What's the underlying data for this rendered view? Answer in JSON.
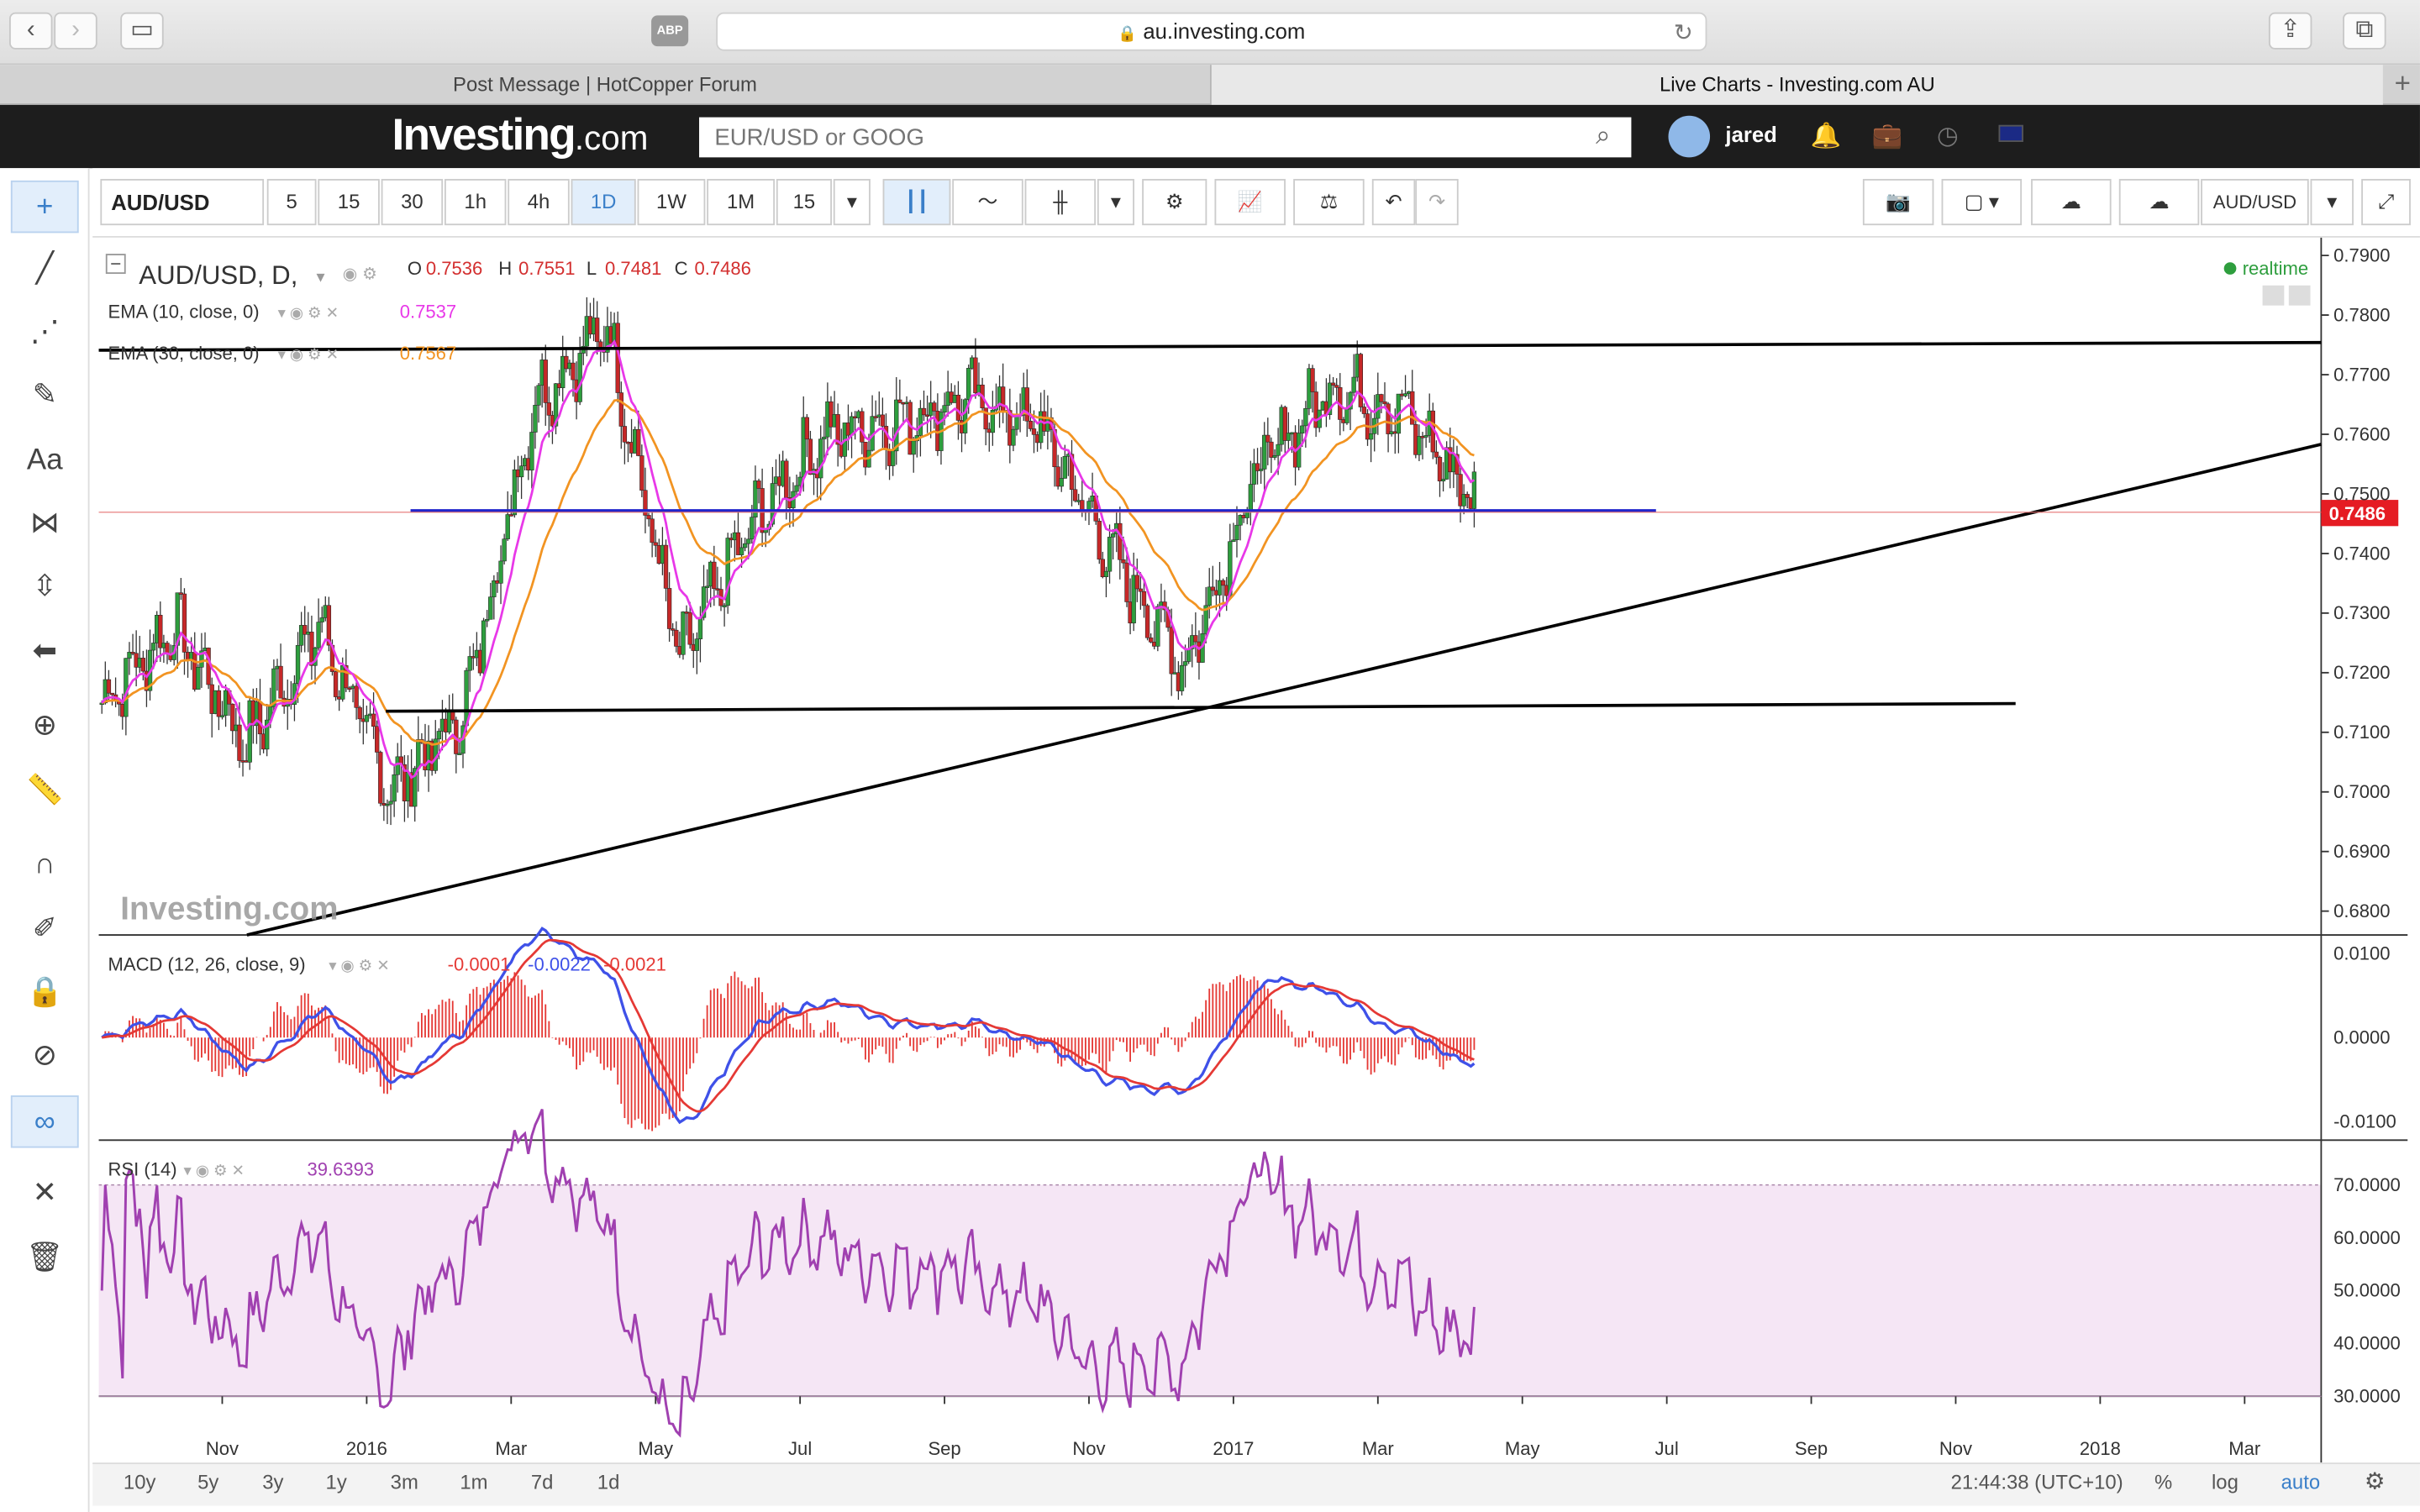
{
  "browser": {
    "url": "au.investing.com",
    "abp_label": "ABP",
    "tabs": [
      {
        "label": "Post Message | HotCopper Forum",
        "active": false
      },
      {
        "label": "Live Charts - Investing.com AU",
        "active": true
      }
    ]
  },
  "header": {
    "logo_main": "Investing",
    "logo_suffix": ".com",
    "search_placeholder": "EUR/USD or GOOG",
    "username": "jared"
  },
  "toolbar": {
    "symbol": "AUD/USD",
    "intervals": [
      "5",
      "15",
      "30",
      "1h",
      "4h",
      "1D",
      "1W",
      "1M",
      "15"
    ],
    "selected_interval": "1D",
    "right_symbol": "AUD/USD"
  },
  "legend": {
    "title": "AUD/USD, D,",
    "open_label": "O",
    "open": "0.7536",
    "high_label": "H",
    "high": "0.7551",
    "low_label": "L",
    "low": "0.7481",
    "close_label": "C",
    "close": "0.7486",
    "ema10_label": "EMA (10, close, 0)",
    "ema10_value": "0.7537",
    "ema30_label": "EMA (30, close, 0)",
    "ema30_value": "0.7567",
    "realtime": "realtime",
    "watermark": "Investing.com"
  },
  "macd_legend": {
    "label": "MACD (12, 26, close, 9)",
    "v1": "-0.0001",
    "v2": "-0.0022",
    "v3": "-0.0021"
  },
  "rsi_legend": {
    "label": "RSI (14)",
    "value": "39.6393"
  },
  "colors": {
    "candle_up": "#2e9e3e",
    "candle_down": "#c62828",
    "ema10": "#e838e8",
    "ema30": "#f29422",
    "price_tag": "#e51c23",
    "macd_line": "#3f51e8",
    "signal_line": "#e53935",
    "rsi_line": "#a040b0",
    "rsi_band": "#f5e6f5",
    "support": "#2026cc"
  },
  "timebar": {
    "ranges": [
      "10y",
      "5y",
      "3y",
      "1y",
      "3m",
      "1m",
      "7d",
      "1d"
    ],
    "clock": "21:44:38 (UTC+10)",
    "pct": "%",
    "log": "log",
    "auto": "auto"
  },
  "chart_data": [
    {
      "type": "candlestick",
      "symbol": "AUD/USD",
      "interval": "D",
      "x_ticks": [
        "Nov",
        "2016",
        "Mar",
        "May",
        "Jul",
        "Sep",
        "Nov",
        "2017",
        "Mar",
        "May",
        "Jul",
        "Sep",
        "Nov",
        "2018",
        "Mar"
      ],
      "y_ticks": [
        "0.7900",
        "0.7800",
        "0.7700",
        "0.7600",
        "0.7500",
        "0.7400",
        "0.7300",
        "0.7200",
        "0.7100",
        "0.7000",
        "0.6900",
        "0.6800"
      ],
      "ylim": [
        0.676,
        0.793
      ],
      "last_price": "0.7486",
      "approx_close_by_month": [
        {
          "x": "2015-09",
          "y": 0.715
        },
        {
          "x": "2015-10",
          "y": 0.728
        },
        {
          "x": "2015-11",
          "y": 0.708
        },
        {
          "x": "2015-12",
          "y": 0.728
        },
        {
          "x": "2016-01",
          "y": 0.7
        },
        {
          "x": "2016-02",
          "y": 0.713
        },
        {
          "x": "2016-03",
          "y": 0.766
        },
        {
          "x": "2016-04",
          "y": 0.778
        },
        {
          "x": "2016-05",
          "y": 0.722
        },
        {
          "x": "2016-06",
          "y": 0.745
        },
        {
          "x": "2016-07",
          "y": 0.76
        },
        {
          "x": "2016-08",
          "y": 0.762
        },
        {
          "x": "2016-09",
          "y": 0.766
        },
        {
          "x": "2016-10",
          "y": 0.761
        },
        {
          "x": "2016-11",
          "y": 0.739
        },
        {
          "x": "2016-12",
          "y": 0.721
        },
        {
          "x": "2017-01",
          "y": 0.754
        },
        {
          "x": "2017-02",
          "y": 0.768
        },
        {
          "x": "2017-03",
          "y": 0.764
        },
        {
          "x": "2017-04",
          "y": 0.749
        }
      ]
    },
    {
      "type": "line",
      "name": "MACD (12, 26, close, 9)",
      "y_ticks": [
        "0.0100",
        "0.0000",
        "-0.0100"
      ],
      "ylim": [
        -0.0122,
        0.0122
      ]
    },
    {
      "type": "line",
      "name": "RSI (14)",
      "y_ticks": [
        "70.0000",
        "60.0000",
        "50.0000",
        "40.0000",
        "30.0000"
      ],
      "ylim": [
        26,
        74
      ],
      "band": [
        30,
        70
      ],
      "last_value": 39.6393
    }
  ]
}
